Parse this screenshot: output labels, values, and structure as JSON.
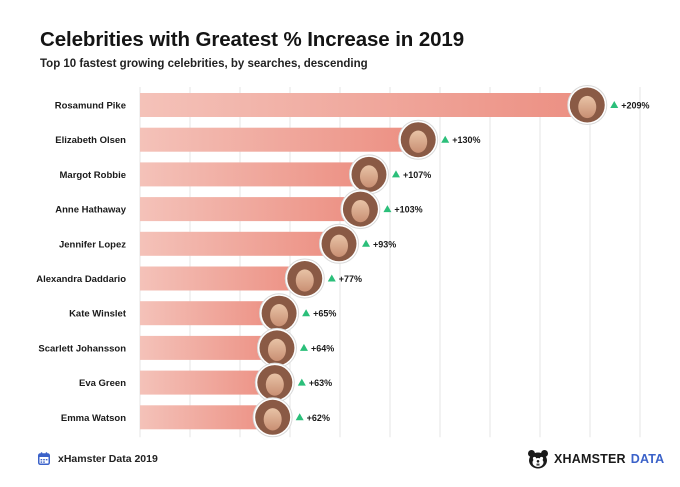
{
  "header": {
    "title": "Celebrities with Greatest % Increase in 2019",
    "subtitle": "Top 10 fastest growing celebrities, by searches, descending"
  },
  "footer": {
    "source": "xHamster Data 2019",
    "calendar_icon": "calendar-icon",
    "logo_brand": "XHAMSTER",
    "logo_accent": "DATA",
    "logo_icon": "hamster-logo-icon"
  },
  "colors": {
    "bar_start": "#f4c2b9",
    "bar_end": "#ec8f82",
    "up_arrow": "#2bbf7a",
    "grid": "#e4e4e4",
    "label": "#1a1a1a"
  },
  "chart_data": {
    "type": "bar",
    "orientation": "horizontal",
    "sort": "descending",
    "categories": [
      "Rosamund Pike",
      "Elizabeth Olsen",
      "Margot Robbie",
      "Anne Hathaway",
      "Jennifer Lopez",
      "Alexandra Daddario",
      "Kate Winslet",
      "Scarlett Johansson",
      "Eva Green",
      "Emma Watson"
    ],
    "values": [
      209,
      130,
      107,
      103,
      93,
      77,
      65,
      64,
      63,
      62
    ],
    "value_labels": [
      "+209%",
      "+130%",
      "+107%",
      "+103%",
      "+93%",
      "+77%",
      "+65%",
      "+64%",
      "+63%",
      "+62%"
    ],
    "unit": "%",
    "indicator": "up-triangle",
    "marker": "celebrity-photo",
    "grid": true,
    "legend": "none"
  }
}
